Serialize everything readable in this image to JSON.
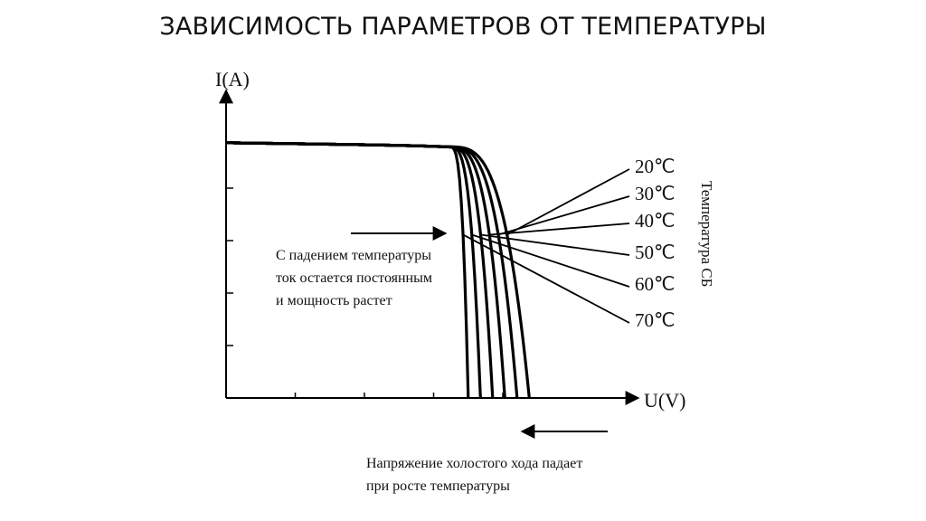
{
  "title": "ЗАВИСИМОСТЬ ПАРАМЕТРОВ ОТ ТЕМПЕРАТУРЫ",
  "chart_data": {
    "type": "line",
    "ylabel": "I(A)",
    "xlabel": "U(V)",
    "legend_title": "Температура СБ",
    "grid": false,
    "isc": 0.973,
    "knee_start": 0.55,
    "series": [
      {
        "name": "20℃",
        "voc": 0.745
      },
      {
        "name": "30℃",
        "voc": 0.715
      },
      {
        "name": "40℃",
        "voc": 0.685
      },
      {
        "name": "50℃",
        "voc": 0.655
      },
      {
        "name": "60℃",
        "voc": 0.625
      },
      {
        "name": "70℃",
        "voc": 0.595
      }
    ],
    "annotations": {
      "current_note": [
        "С падением температуры",
        "ток остается постоянным",
        "и мощность растет"
      ],
      "voltage_note": [
        "Напряжение холостого хода падает",
        "при росте температуры"
      ]
    }
  }
}
